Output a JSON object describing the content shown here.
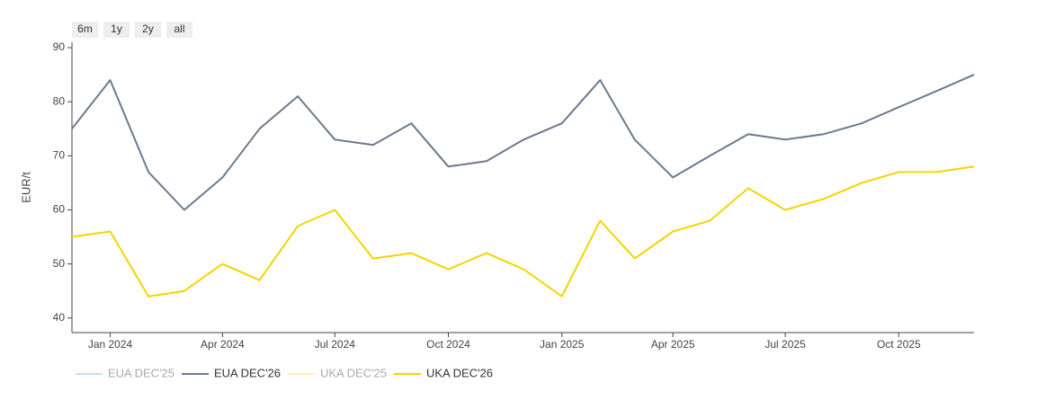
{
  "chart_data": {
    "type": "line",
    "buttons": [
      "6m",
      "1y",
      "2y",
      "all"
    ],
    "y_label": "EUR/t",
    "x": [
      "2023-12",
      "2024-01",
      "2024-02",
      "2024-03",
      "2024-04",
      "2024-05",
      "2024-06",
      "2024-07",
      "2024-08",
      "2024-09",
      "2024-10",
      "2024-11",
      "2024-12",
      "2025-01",
      "2025-02",
      "2025-03",
      "2025-04",
      "2025-05",
      "2025-06",
      "2025-07",
      "2025-08",
      "2025-09",
      "2025-10",
      "2025-11",
      "2025-12"
    ],
    "series": [
      {
        "name": "EUA DEC'25",
        "color": "#8fd3e0",
        "hidden": true
      },
      {
        "name": "EUA DEC'26",
        "color": "#6b7a8f",
        "values": [
          75,
          84,
          67,
          60,
          66,
          75,
          81,
          73,
          72,
          76,
          68,
          69,
          73,
          76,
          84,
          73,
          66,
          70,
          74,
          73,
          74,
          76,
          79,
          82,
          85
        ]
      },
      {
        "name": "UKA DEC'25",
        "color": "#fde38a",
        "hidden": true
      },
      {
        "name": "UKA DEC'26",
        "color": "#f5d400",
        "values": [
          55,
          56,
          44,
          45,
          50,
          47,
          57,
          60,
          51,
          52,
          49,
          52,
          49,
          44,
          58,
          51,
          56,
          58,
          64,
          60,
          62,
          65,
          67,
          67,
          68
        ]
      }
    ],
    "xlim": [
      "2023-12",
      "2025-12"
    ],
    "xticks": [
      {
        "value": "2024-01",
        "label": "Jan 2024"
      },
      {
        "value": "2024-04",
        "label": "Apr 2024"
      },
      {
        "value": "2024-07",
        "label": "Jul 2024"
      },
      {
        "value": "2024-10",
        "label": "Oct 2024"
      },
      {
        "value": "2025-01",
        "label": "Jan 2025"
      },
      {
        "value": "2025-04",
        "label": "Apr 2025"
      },
      {
        "value": "2025-07",
        "label": "Jul 2025"
      },
      {
        "value": "2025-10",
        "label": "Oct 2025"
      }
    ],
    "ylim": [
      37.3,
      91
    ],
    "yticks": [
      40,
      50,
      60,
      70,
      80,
      90
    ]
  }
}
